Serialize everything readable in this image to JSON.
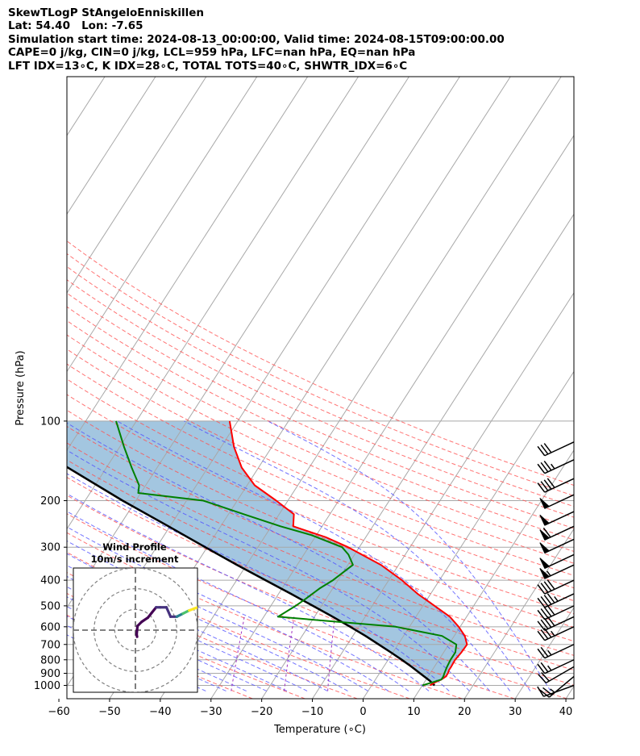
{
  "title_lines": [
    "SkewTLogP StAngeloEnniskillen",
    "Lat: 54.40   Lon: -7.65",
    "Simulation start time: 2024-08-13_00:00:00, Valid time: 2024-08-15T09:00:00.00",
    "CAPE=0 j/kg, CIN=0 j/kg, LCL=959 hPa, LFC=nan hPa, EQ=nan hPa",
    "LFT IDX=13∘C, K IDX=28∘C, TOTAL TOTS=40∘C, SHWTR_IDX=6∘C"
  ],
  "chart_data": {
    "type": "skewt-logp",
    "xlabel": "Temperature (∘C)",
    "ylabel": "Pressure (hPa)",
    "xlim": [
      -60,
      40
    ],
    "ylim": [
      1050,
      100
    ],
    "xticks": [
      -60,
      -50,
      -40,
      -30,
      -20,
      -10,
      0,
      10,
      20,
      30,
      40
    ],
    "xtick_labels": [
      "−60",
      "−50",
      "−40",
      "−30",
      "−20",
      "−10",
      "0",
      "10",
      "20",
      "30",
      "40"
    ],
    "yticks": [
      1000,
      900,
      800,
      700,
      600,
      500,
      400,
      300,
      200,
      100
    ],
    "ytick_labels": [
      "1000",
      "900",
      "800",
      "700",
      "600",
      "500",
      "400",
      "300",
      "200",
      "100"
    ],
    "grid": true,
    "colors": {
      "temperature": "#ff0000",
      "dewpoint": "#008000",
      "parcel": "#000000",
      "fill": "#a3c6e0",
      "dry_adiabat": "#ff5050",
      "moist_adiabat": "#5050ff",
      "mixing_ratio": "#a030c0",
      "isotherm": "#a8a8a8"
    },
    "temperature_profile": [
      [
        1000,
        11.5
      ],
      [
        975,
        12.1
      ],
      [
        950,
        13.0
      ],
      [
        925,
        13.5
      ],
      [
        900,
        13.5
      ],
      [
        875,
        13.3
      ],
      [
        850,
        13.3
      ],
      [
        800,
        13.2
      ],
      [
        750,
        13.5
      ],
      [
        700,
        13.6
      ],
      [
        650,
        12.1
      ],
      [
        600,
        9.7
      ],
      [
        550,
        6.7
      ],
      [
        500,
        2.3
      ],
      [
        450,
        -2.6
      ],
      [
        400,
        -7.4
      ],
      [
        350,
        -13.5
      ],
      [
        300,
        -22.2
      ],
      [
        275,
        -27.9
      ],
      [
        250,
        -35.7
      ],
      [
        225,
        -37.1
      ],
      [
        200,
        -42.3
      ],
      [
        175,
        -48.5
      ],
      [
        150,
        -53.3
      ],
      [
        125,
        -57.5
      ],
      [
        100,
        -61.6
      ]
    ],
    "dewpoint_profile": [
      [
        1000,
        10.0
      ],
      [
        975,
        11.5
      ],
      [
        950,
        13.0
      ],
      [
        925,
        13.0
      ],
      [
        900,
        12.8
      ],
      [
        850,
        12.5
      ],
      [
        800,
        12.3
      ],
      [
        750,
        12.3
      ],
      [
        700,
        11.5
      ],
      [
        650,
        7.6
      ],
      [
        600,
        -2.7
      ],
      [
        550,
        -27.2
      ],
      [
        500,
        -25.1
      ],
      [
        470,
        -24.0
      ],
      [
        430,
        -22.6
      ],
      [
        400,
        -21.0
      ],
      [
        350,
        -19.0
      ],
      [
        320,
        -21.2
      ],
      [
        300,
        -23.4
      ],
      [
        270,
        -31.0
      ],
      [
        250,
        -38.2
      ],
      [
        225,
        -47.0
      ],
      [
        200,
        -56.7
      ],
      [
        187,
        -70.5
      ],
      [
        175,
        -71.3
      ],
      [
        150,
        -75.0
      ],
      [
        125,
        -79.2
      ],
      [
        100,
        -84.0
      ]
    ],
    "parcel_profile": [
      [
        1000,
        12.4
      ],
      [
        959,
        10.8
      ],
      [
        900,
        8.0
      ],
      [
        850,
        5.5
      ],
      [
        800,
        2.7
      ],
      [
        750,
        -0.4
      ],
      [
        700,
        -3.8
      ],
      [
        650,
        -7.5
      ],
      [
        600,
        -11.7
      ],
      [
        550,
        -16.4
      ],
      [
        500,
        -21.7
      ],
      [
        450,
        -27.6
      ],
      [
        400,
        -34.3
      ],
      [
        350,
        -41.9
      ],
      [
        300,
        -50.4
      ],
      [
        250,
        -60.3
      ],
      [
        200,
        -72.6
      ],
      [
        150,
        -87.6
      ],
      [
        100,
        -107.0
      ]
    ],
    "wind_barbs": [
      {
        "p": 1000,
        "speed_kt": 10,
        "dir_deg": 250
      },
      {
        "p": 925,
        "speed_kt": 25,
        "dir_deg": 230
      },
      {
        "p": 850,
        "speed_kt": 20,
        "dir_deg": 240
      },
      {
        "p": 800,
        "speed_kt": 25,
        "dir_deg": 245
      },
      {
        "p": 700,
        "speed_kt": 25,
        "dir_deg": 245
      },
      {
        "p": 600,
        "speed_kt": 35,
        "dir_deg": 245
      },
      {
        "p": 550,
        "speed_kt": 40,
        "dir_deg": 245
      },
      {
        "p": 500,
        "speed_kt": 40,
        "dir_deg": 245
      },
      {
        "p": 450,
        "speed_kt": 45,
        "dir_deg": 245
      },
      {
        "p": 400,
        "speed_kt": 40,
        "dir_deg": 245
      },
      {
        "p": 350,
        "speed_kt": 55,
        "dir_deg": 245
      },
      {
        "p": 320,
        "speed_kt": 50,
        "dir_deg": 245
      },
      {
        "p": 280,
        "speed_kt": 50,
        "dir_deg": 245
      },
      {
        "p": 250,
        "speed_kt": 60,
        "dir_deg": 245
      },
      {
        "p": 220,
        "speed_kt": 50,
        "dir_deg": 245
      },
      {
        "p": 190,
        "speed_kt": 50,
        "dir_deg": 245
      },
      {
        "p": 165,
        "speed_kt": 40,
        "dir_deg": 245
      },
      {
        "p": 140,
        "speed_kt": 35,
        "dir_deg": 245
      },
      {
        "p": 120,
        "speed_kt": 30,
        "dir_deg": 245
      }
    ],
    "hodograph": {
      "title": "Wind Profile",
      "subtitle": "10m/s increment",
      "rings_ms": [
        10,
        20,
        30
      ],
      "range_ms": 30,
      "trace_uv": [
        [
          0.8,
          -3.2
        ],
        [
          0.6,
          -2.0
        ],
        [
          1.0,
          2.0
        ],
        [
          3.0,
          4.0
        ],
        [
          6.0,
          6.0
        ],
        [
          8.0,
          8.5
        ],
        [
          10.0,
          11.0
        ],
        [
          12.0,
          11.0
        ],
        [
          15.0,
          11.0
        ],
        [
          17.0,
          6.5
        ],
        [
          20.0,
          6.5
        ],
        [
          23.0,
          8.0
        ],
        [
          26.0,
          9.5
        ],
        [
          30.0,
          11.0
        ]
      ]
    }
  }
}
